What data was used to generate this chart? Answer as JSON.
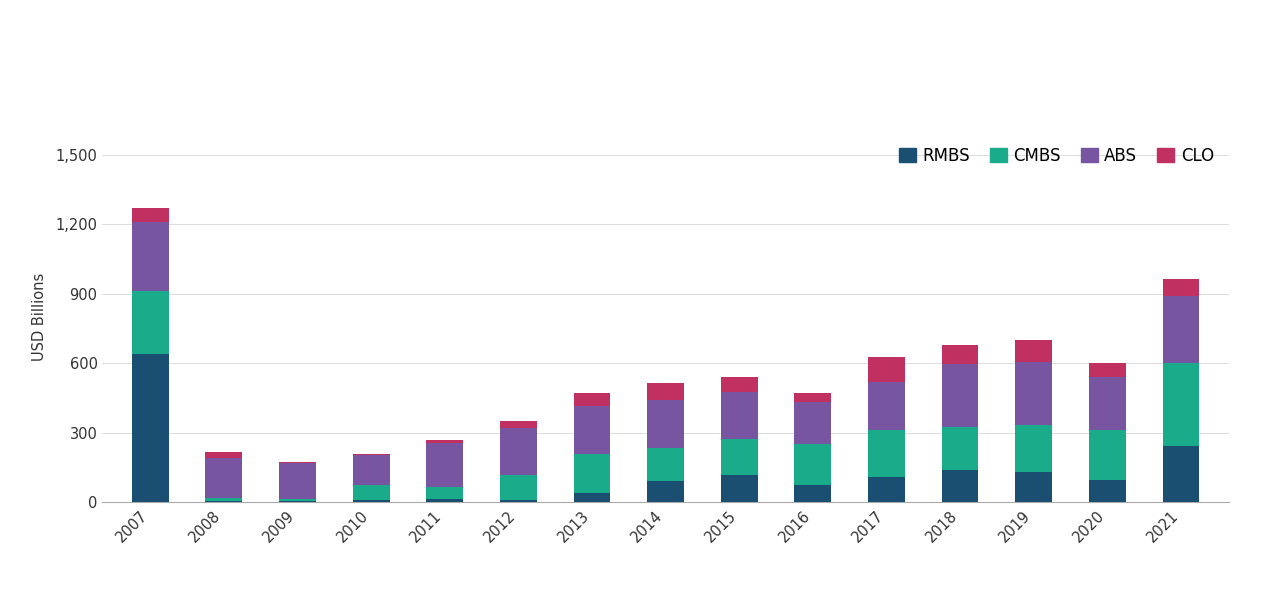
{
  "years": [
    "2007",
    "2008",
    "2009",
    "2010",
    "2011",
    "2012",
    "2013",
    "2014",
    "2015",
    "2016",
    "2017",
    "2018",
    "2019",
    "2020",
    "2021"
  ],
  "RMBS": [
    640,
    5,
    5,
    10,
    15,
    10,
    40,
    90,
    120,
    75,
    110,
    140,
    130,
    95,
    245
  ],
  "CMBS": [
    270,
    15,
    10,
    65,
    50,
    110,
    170,
    145,
    155,
    175,
    200,
    185,
    205,
    215,
    355
  ],
  "ABS": [
    300,
    170,
    155,
    130,
    190,
    200,
    205,
    205,
    200,
    185,
    210,
    270,
    270,
    230,
    290
  ],
  "CLO": [
    60,
    25,
    5,
    5,
    15,
    30,
    55,
    75,
    65,
    35,
    105,
    85,
    95,
    60,
    75
  ],
  "colors": {
    "RMBS": "#1b4f72",
    "CMBS": "#1aab8a",
    "ABS": "#7855a0",
    "CLO": "#c03060"
  },
  "ylabel": "USD Billions",
  "ylim": [
    0,
    1600
  ],
  "yticks": [
    0,
    300,
    600,
    900,
    1200,
    1500
  ],
  "ytick_labels": [
    "0",
    "300",
    "600",
    "900",
    "1,200",
    "1,500"
  ],
  "background_color": "#ffffff",
  "legend_labels": [
    "RMBS",
    "CMBS",
    "ABS",
    "CLO"
  ]
}
